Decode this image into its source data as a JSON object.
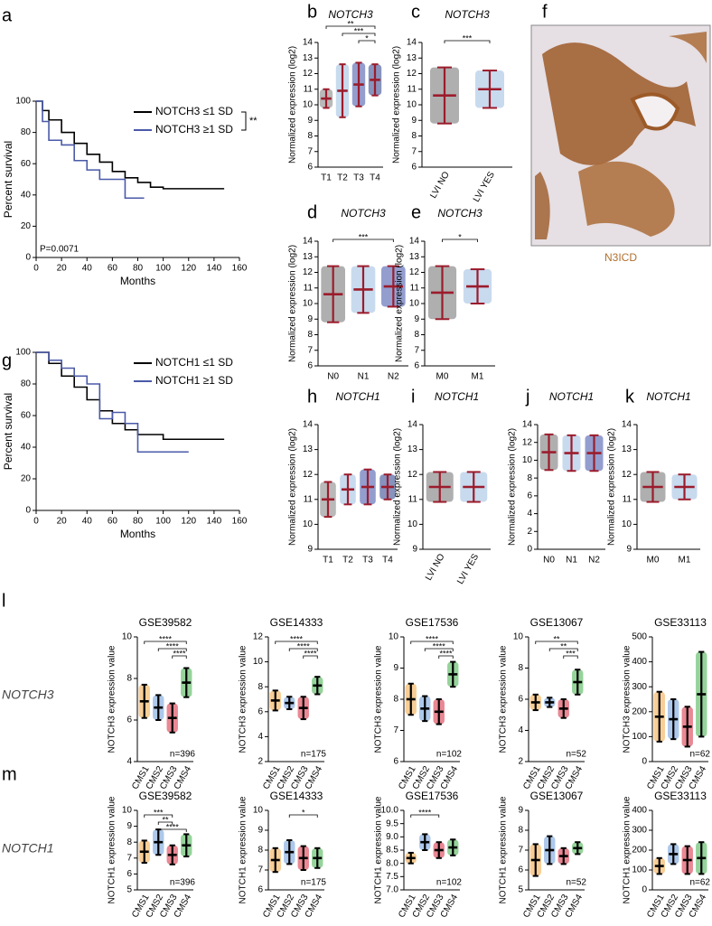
{
  "chart_data": [
    {
      "type": "survival",
      "panel": "a",
      "xlabel": "Months",
      "ylabel": "Percent survival",
      "xlim": [
        0,
        160
      ],
      "ylim": [
        0,
        100
      ],
      "xticks": [
        0,
        20,
        40,
        60,
        80,
        100,
        120,
        140,
        160
      ],
      "yticks": [
        0,
        20,
        40,
        60,
        80,
        100
      ],
      "annotations": [
        "P=0.0071",
        "**"
      ],
      "series": [
        {
          "name": "NOTCH3 ≤1 SD",
          "color": "#000000",
          "x": [
            0,
            5,
            10,
            20,
            30,
            40,
            50,
            60,
            70,
            80,
            90,
            100,
            148
          ],
          "values": [
            100,
            94,
            88,
            80,
            73,
            66,
            61,
            55,
            51,
            48,
            45,
            44,
            44
          ]
        },
        {
          "name": "NOTCH3 ≥1 SD",
          "color": "#4a5aa8",
          "x": [
            0,
            5,
            10,
            20,
            30,
            40,
            50,
            60,
            70,
            85
          ],
          "values": [
            100,
            87,
            75,
            72,
            62,
            56,
            50,
            50,
            38,
            38
          ]
        }
      ]
    },
    {
      "type": "dotplot",
      "panel": "b",
      "title": "NOTCH3",
      "ylabel": "Normalized expression (log2)",
      "categories": [
        "T1",
        "T2",
        "T3",
        "T4"
      ],
      "values": [
        10.4,
        10.9,
        11.3,
        11.6
      ],
      "errors": [
        0.6,
        1.7,
        1.4,
        1.0
      ],
      "colors": [
        "#808080",
        "#9bbbe0",
        "#3b4ea8",
        "#253a87"
      ],
      "bar_color": "#9b1c2c",
      "ylim": [
        6,
        14
      ],
      "yticks": [
        6,
        7,
        8,
        9,
        10,
        11,
        12,
        13,
        14
      ],
      "annotations": [
        "**",
        "***",
        "*"
      ]
    },
    {
      "type": "dotplot",
      "panel": "c",
      "title": "NOTCH3",
      "ylabel": "Normalized expression (log2)",
      "categories": [
        "LVI NO",
        "LVI YES"
      ],
      "rotate_labels": true,
      "values": [
        10.6,
        11.0
      ],
      "errors": [
        1.8,
        1.2
      ],
      "colors": [
        "#6e6e6e",
        "#9bbbe0"
      ],
      "bar_color": "#9b1c2c",
      "ylim": [
        6,
        14
      ],
      "yticks": [
        6,
        7,
        8,
        9,
        10,
        11,
        12,
        13,
        14
      ],
      "annotations": [
        "***"
      ]
    },
    {
      "type": "dotplot",
      "panel": "d",
      "title": "NOTCH3",
      "ylabel": "Normalized expression (log2)",
      "categories": [
        "N0",
        "N1",
        "N2"
      ],
      "values": [
        10.6,
        10.9,
        11.1
      ],
      "errors": [
        1.8,
        1.5,
        1.3
      ],
      "colors": [
        "#6e6e6e",
        "#9bbbe0",
        "#3b4ea8"
      ],
      "bar_color": "#9b1c2c",
      "ylim": [
        6,
        14
      ],
      "yticks": [
        6,
        7,
        8,
        9,
        10,
        11,
        12,
        13,
        14
      ],
      "annotations": [
        "***"
      ]
    },
    {
      "type": "dotplot",
      "panel": "e",
      "title": "NOTCH3",
      "ylabel": "Normalized expression (log2)",
      "categories": [
        "M0",
        "M1"
      ],
      "values": [
        10.7,
        11.1
      ],
      "errors": [
        1.7,
        1.1
      ],
      "colors": [
        "#6e6e6e",
        "#9bbbe0"
      ],
      "bar_color": "#9b1c2c",
      "ylim": [
        6,
        14
      ],
      "yticks": [
        6,
        7,
        8,
        9,
        10,
        11,
        12,
        13,
        14
      ],
      "annotations": [
        "*"
      ]
    },
    {
      "type": "survival",
      "panel": "g",
      "xlabel": "Months",
      "ylabel": "Percent survival",
      "xlim": [
        0,
        160
      ],
      "ylim": [
        0,
        100
      ],
      "xticks": [
        0,
        20,
        40,
        60,
        80,
        100,
        120,
        140,
        160
      ],
      "yticks": [
        0,
        20,
        40,
        60,
        80,
        100
      ],
      "series": [
        {
          "name": "NOTCH1 ≤1 SD",
          "color": "#000000",
          "x": [
            0,
            10,
            20,
            30,
            40,
            50,
            60,
            70,
            80,
            100,
            148
          ],
          "values": [
            100,
            93,
            85,
            78,
            70,
            63,
            55,
            51,
            48,
            45,
            45
          ]
        },
        {
          "name": "NOTCH1 ≥1 SD",
          "color": "#4a5aa8",
          "x": [
            0,
            10,
            20,
            30,
            40,
            50,
            60,
            70,
            80,
            120
          ],
          "values": [
            100,
            95,
            90,
            85,
            80,
            58,
            62,
            55,
            37,
            37
          ]
        }
      ]
    },
    {
      "type": "dotplot",
      "panel": "h",
      "title": "NOTCH1",
      "ylabel": "Normalized expression (log2)",
      "categories": [
        "T1",
        "T2",
        "T3",
        "T4"
      ],
      "values": [
        11.0,
        11.4,
        11.5,
        11.5
      ],
      "errors": [
        0.7,
        0.6,
        0.7,
        0.5
      ],
      "colors": [
        "#808080",
        "#9bbbe0",
        "#3b4ea8",
        "#253a87"
      ],
      "bar_color": "#9b1c2c",
      "ylim": [
        9,
        14
      ],
      "yticks": [
        9,
        10,
        11,
        12,
        13,
        14
      ]
    },
    {
      "type": "dotplot",
      "panel": "i",
      "title": "NOTCH1",
      "ylabel": "Normalized expression (log2)",
      "categories": [
        "LVI NO",
        "LVI YES"
      ],
      "rotate_labels": true,
      "values": [
        11.5,
        11.5
      ],
      "errors": [
        0.6,
        0.6
      ],
      "colors": [
        "#6e6e6e",
        "#9bbbe0"
      ],
      "bar_color": "#9b1c2c",
      "ylim": [
        9,
        14
      ],
      "yticks": [
        9,
        10,
        11,
        12,
        13,
        14
      ]
    },
    {
      "type": "dotplot",
      "panel": "j",
      "title": "NOTCH1",
      "ylabel": "Normalized expression (log2)",
      "categories": [
        "N0",
        "N1",
        "N2"
      ],
      "values": [
        10.9,
        10.8,
        10.8
      ],
      "errors": [
        2.0,
        2.0,
        2.0
      ],
      "colors": [
        "#6e6e6e",
        "#9bbbe0",
        "#3b4ea8"
      ],
      "bar_color": "#9b1c2c",
      "ylim": [
        0,
        14
      ],
      "yticks": [
        0,
        2,
        4,
        6,
        8,
        10,
        12,
        14
      ]
    },
    {
      "type": "dotplot",
      "panel": "k",
      "title": "NOTCH1",
      "ylabel": "Normalized expression (log2)",
      "categories": [
        "M0",
        "M1"
      ],
      "values": [
        11.5,
        11.5
      ],
      "errors": [
        0.6,
        0.5
      ],
      "colors": [
        "#6e6e6e",
        "#9bbbe0"
      ],
      "bar_color": "#9b1c2c",
      "ylim": [
        9,
        14
      ],
      "yticks": [
        9,
        10,
        11,
        12,
        13,
        14
      ]
    },
    {
      "type": "dotplot",
      "title": "GSE39582",
      "ylabel": "NOTCH3 expression value",
      "note": "n=396",
      "categories": [
        "CMS1",
        "CMS2",
        "CMS3",
        "CMS4"
      ],
      "rotate_labels": true,
      "values": [
        6.9,
        6.6,
        6.1,
        7.8
      ],
      "errors": [
        0.8,
        0.6,
        0.7,
        0.7
      ],
      "colors": [
        "#f2a541",
        "#6a9bd8",
        "#d7263d",
        "#3fae49"
      ],
      "bar_color": "#000000",
      "ylim": [
        4,
        10
      ],
      "yticks": [
        4,
        6,
        8,
        10
      ],
      "annotations": [
        "****",
        "****",
        "****"
      ]
    },
    {
      "type": "dotplot",
      "title": "GSE14333",
      "ylabel": "NOTCH3 expression value",
      "note": "n=175",
      "categories": [
        "CMS1",
        "CMS2",
        "CMS3",
        "CMS4"
      ],
      "rotate_labels": true,
      "values": [
        6.9,
        6.7,
        6.3,
        8.1
      ],
      "errors": [
        0.8,
        0.5,
        0.9,
        0.7
      ],
      "colors": [
        "#f2a541",
        "#6a9bd8",
        "#d7263d",
        "#3fae49"
      ],
      "bar_color": "#000000",
      "ylim": [
        2,
        12
      ],
      "yticks": [
        2,
        4,
        6,
        8,
        10,
        12
      ],
      "annotations": [
        "****",
        "****",
        "****"
      ]
    },
    {
      "type": "dotplot",
      "title": "GSE17536",
      "ylabel": "NOTCH3 expression value",
      "note": "n=102",
      "categories": [
        "CMS1",
        "CMS2",
        "CMS3",
        "CMS4"
      ],
      "rotate_labels": true,
      "values": [
        8.0,
        7.7,
        7.6,
        8.8
      ],
      "errors": [
        0.5,
        0.4,
        0.4,
        0.4
      ],
      "colors": [
        "#f2a541",
        "#6a9bd8",
        "#d7263d",
        "#3fae49"
      ],
      "bar_color": "#000000",
      "ylim": [
        6,
        10
      ],
      "yticks": [
        6,
        7,
        8,
        9,
        10
      ],
      "annotations": [
        "****",
        "****",
        "****"
      ]
    },
    {
      "type": "dotplot",
      "title": "GSE13067",
      "ylabel": "NOTCH3 expression value",
      "note": "n=52",
      "categories": [
        "CMS1",
        "CMS2",
        "CMS3",
        "CMS4"
      ],
      "rotate_labels": true,
      "values": [
        5.8,
        5.8,
        5.4,
        7.1
      ],
      "errors": [
        0.5,
        0.3,
        0.6,
        0.8
      ],
      "colors": [
        "#f2a541",
        "#6a9bd8",
        "#d7263d",
        "#3fae49"
      ],
      "bar_color": "#000000",
      "ylim": [
        2,
        10
      ],
      "yticks": [
        2,
        4,
        6,
        8,
        10
      ],
      "annotations": [
        "**",
        "**",
        "***"
      ]
    },
    {
      "type": "dotplot",
      "title": "GSE33113",
      "ylabel": "NOTCH3 expression value",
      "note": "n=62",
      "categories": [
        "CMS1",
        "CMS2",
        "CMS3",
        "CMS4"
      ],
      "rotate_labels": true,
      "values": [
        180,
        170,
        140,
        270
      ],
      "errors": [
        100,
        80,
        80,
        170
      ],
      "colors": [
        "#f2a541",
        "#6a9bd8",
        "#d7263d",
        "#3fae49"
      ],
      "bar_color": "#000000",
      "ylim": [
        0,
        500
      ],
      "yticks": [
        0,
        100,
        200,
        300,
        400,
        500
      ]
    },
    {
      "type": "dotplot",
      "title": "GSE39582",
      "ylabel": "NOTCH1 expression value",
      "note": "n=396",
      "categories": [
        "CMS1",
        "CMS2",
        "CMS3",
        "CMS4"
      ],
      "rotate_labels": true,
      "values": [
        7.4,
        8.0,
        7.2,
        7.8
      ],
      "errors": [
        0.7,
        0.8,
        0.6,
        0.7
      ],
      "colors": [
        "#f2a541",
        "#6a9bd8",
        "#d7263d",
        "#3fae49"
      ],
      "bar_color": "#000000",
      "ylim": [
        5,
        10
      ],
      "yticks": [
        5,
        6,
        7,
        8,
        9,
        10
      ],
      "annotations": [
        "***",
        "**",
        "****"
      ]
    },
    {
      "type": "dotplot",
      "title": "GSE14333",
      "ylabel": "NOTCH1 expression value",
      "note": "n=175",
      "categories": [
        "CMS1",
        "CMS2",
        "CMS3",
        "CMS4"
      ],
      "rotate_labels": true,
      "values": [
        7.5,
        7.9,
        7.6,
        7.6
      ],
      "errors": [
        0.6,
        0.6,
        0.6,
        0.5
      ],
      "colors": [
        "#f2a541",
        "#6a9bd8",
        "#d7263d",
        "#3fae49"
      ],
      "bar_color": "#000000",
      "ylim": [
        6,
        10
      ],
      "yticks": [
        6,
        7,
        8,
        9,
        10
      ],
      "annotations": [
        "*"
      ]
    },
    {
      "type": "dotplot",
      "title": "GSE17536",
      "ylabel": "NOTCH1 expression value",
      "note": "n=102",
      "categories": [
        "CMS1",
        "CMS2",
        "CMS3",
        "CMS4"
      ],
      "rotate_labels": true,
      "values": [
        8.2,
        8.8,
        8.5,
        8.6
      ],
      "errors": [
        0.2,
        0.3,
        0.3,
        0.3
      ],
      "colors": [
        "#f2a541",
        "#6a9bd8",
        "#d7263d",
        "#3fae49"
      ],
      "bar_color": "#000000",
      "ylim": [
        7,
        10
      ],
      "yticks": [
        {
          "value": 7,
          "label": "7.0"
        },
        7.5,
        {
          "value": 8,
          "label": "8.0"
        },
        8.5,
        {
          "value": 9,
          "label": "9.0"
        },
        9.5,
        {
          "value": 10,
          "label": "10.0"
        }
      ],
      "annotations": [
        "****"
      ]
    },
    {
      "type": "dotplot",
      "title": "GSE13067",
      "ylabel": "NOTCH1 expression value",
      "note": "n=52",
      "categories": [
        "CMS1",
        "CMS2",
        "CMS3",
        "CMS4"
      ],
      "rotate_labels": true,
      "values": [
        6.5,
        7.0,
        6.7,
        7.1
      ],
      "errors": [
        0.8,
        0.7,
        0.4,
        0.3
      ],
      "colors": [
        "#f2a541",
        "#6a9bd8",
        "#d7263d",
        "#3fae49"
      ],
      "bar_color": "#000000",
      "ylim": [
        5,
        9
      ],
      "yticks": [
        5,
        6,
        7,
        8,
        9
      ]
    },
    {
      "type": "dotplot",
      "title": "GSE33113",
      "ylabel": "NOTCH1 expression value",
      "note": "n=62",
      "categories": [
        "CMS1",
        "CMS2",
        "CMS3",
        "CMS4"
      ],
      "rotate_labels": true,
      "values": [
        120,
        180,
        150,
        160
      ],
      "errors": [
        40,
        50,
        70,
        80
      ],
      "colors": [
        "#f2a541",
        "#6a9bd8",
        "#d7263d",
        "#3fae49"
      ],
      "bar_color": "#000000",
      "ylim": [
        0,
        400
      ],
      "yticks": [
        0,
        100,
        200,
        300,
        400
      ]
    }
  ],
  "image_panel": {
    "panel": "f",
    "caption": "N3ICD"
  },
  "rows": [
    {
      "panel": "l",
      "label": "NOTCH3"
    },
    {
      "panel": "m",
      "label": "NOTCH1"
    }
  ]
}
